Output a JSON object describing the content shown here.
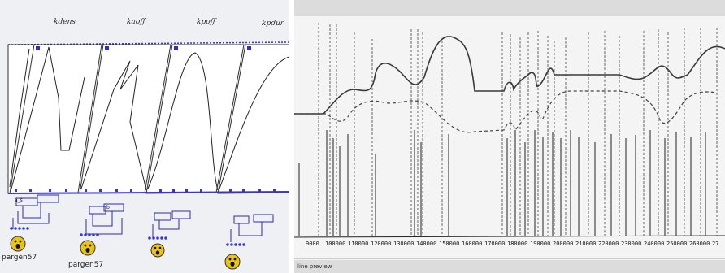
{
  "left_panel": {
    "function_labels": [
      "kdens",
      "kaoff",
      "kpoff",
      "kpdur"
    ],
    "patch_labels": [
      "pargen57",
      "pargen57"
    ],
    "box_label_a": "a_s",
    "box_label_b": "b"
  },
  "right_panel": {
    "time_ticks": [
      "9000",
      "100000",
      "110000",
      "120000",
      "130000",
      "140000",
      "150000",
      "160000",
      "170000",
      "180000",
      "190000",
      "200000",
      "210000",
      "220000",
      "230000",
      "240000",
      "250000",
      "260000",
      "27"
    ],
    "status_text": "line preview"
  },
  "colors": {
    "line": "#1b1b1b",
    "frame": "#2b2bb0",
    "background": "#ffffff"
  }
}
